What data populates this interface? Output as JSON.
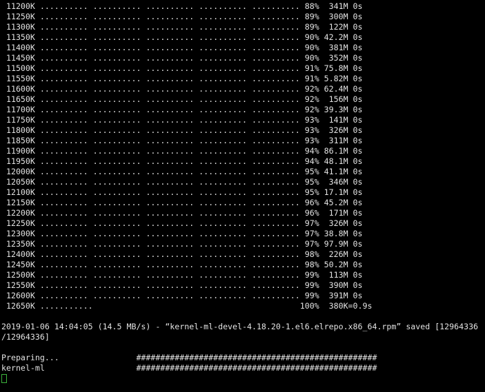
{
  "colors": {
    "background": "#000000",
    "foreground": "#e3e3e3",
    "cursor_green": "#3cb43c"
  },
  "summary": {
    "timestamp": "2019-01-06 14:04:05",
    "average_speed": "14.5 MB/s",
    "filename": "kernel-ml-devel-4.18.20-1.el6.elrepo.x86_64.rpm",
    "saved_bytes": "12964336/12964336",
    "final_percent": "100%",
    "final_rate": "380K",
    "total_time": "0.9s",
    "rpm_steps": [
      "Preparing...",
      "kernel-ml"
    ]
  },
  "terminal": {
    "lines": [
      " 11200K .......... .......... .......... .......... .......... 88%  341M 0s",
      " 11250K .......... .......... .......... .......... .......... 89%  300M 0s",
      " 11300K .......... .......... .......... .......... .......... 89%  122M 0s",
      " 11350K .......... .......... .......... .......... .......... 90% 42.2M 0s",
      " 11400K .......... .......... .......... .......... .......... 90%  381M 0s",
      " 11450K .......... .......... .......... .......... .......... 90%  352M 0s",
      " 11500K .......... .......... .......... .......... .......... 91% 75.8M 0s",
      " 11550K .......... .......... .......... .......... .......... 91% 5.82M 0s",
      " 11600K .......... .......... .......... .......... .......... 92% 62.4M 0s",
      " 11650K .......... .......... .......... .......... .......... 92%  156M 0s",
      " 11700K .......... .......... .......... .......... .......... 92% 39.3M 0s",
      " 11750K .......... .......... .......... .......... .......... 93%  141M 0s",
      " 11800K .......... .......... .......... .......... .......... 93%  326M 0s",
      " 11850K .......... .......... .......... .......... .......... 93%  311M 0s",
      " 11900K .......... .......... .......... .......... .......... 94% 86.1M 0s",
      " 11950K .......... .......... .......... .......... .......... 94% 48.1M 0s",
      " 12000K .......... .......... .......... .......... .......... 95% 41.1M 0s",
      " 12050K .......... .......... .......... .......... .......... 95%  346M 0s",
      " 12100K .......... .......... .......... .......... .......... 95% 17.1M 0s",
      " 12150K .......... .......... .......... .......... .......... 96% 45.2M 0s",
      " 12200K .......... .......... .......... .......... .......... 96%  171M 0s",
      " 12250K .......... .......... .......... .......... .......... 97%  326M 0s",
      " 12300K .......... .......... .......... .......... .......... 97% 38.8M 0s",
      " 12350K .......... .......... .......... .......... .......... 97% 97.9M 0s",
      " 12400K .......... .......... .......... .......... .......... 98%  226M 0s",
      " 12450K .......... .......... .......... .......... .......... 98% 50.2M 0s",
      " 12500K .......... .......... .......... .......... .......... 99%  113M 0s",
      " 12550K .......... .......... .......... .......... .......... 99%  390M 0s",
      " 12600K .......... .......... .......... .......... .......... 99%  391M 0s",
      " 12650K ...........                                           100%  380K=0.9s",
      "",
      "2019-01-06 14:04:05 (14.5 MB/s) - “kernel-ml-devel-4.18.20-1.el6.elrepo.x86_64.rpm” saved [12964336",
      "/12964336]",
      "",
      "Preparing...                ##################################################",
      "kernel-ml                   ##################################################"
    ]
  }
}
